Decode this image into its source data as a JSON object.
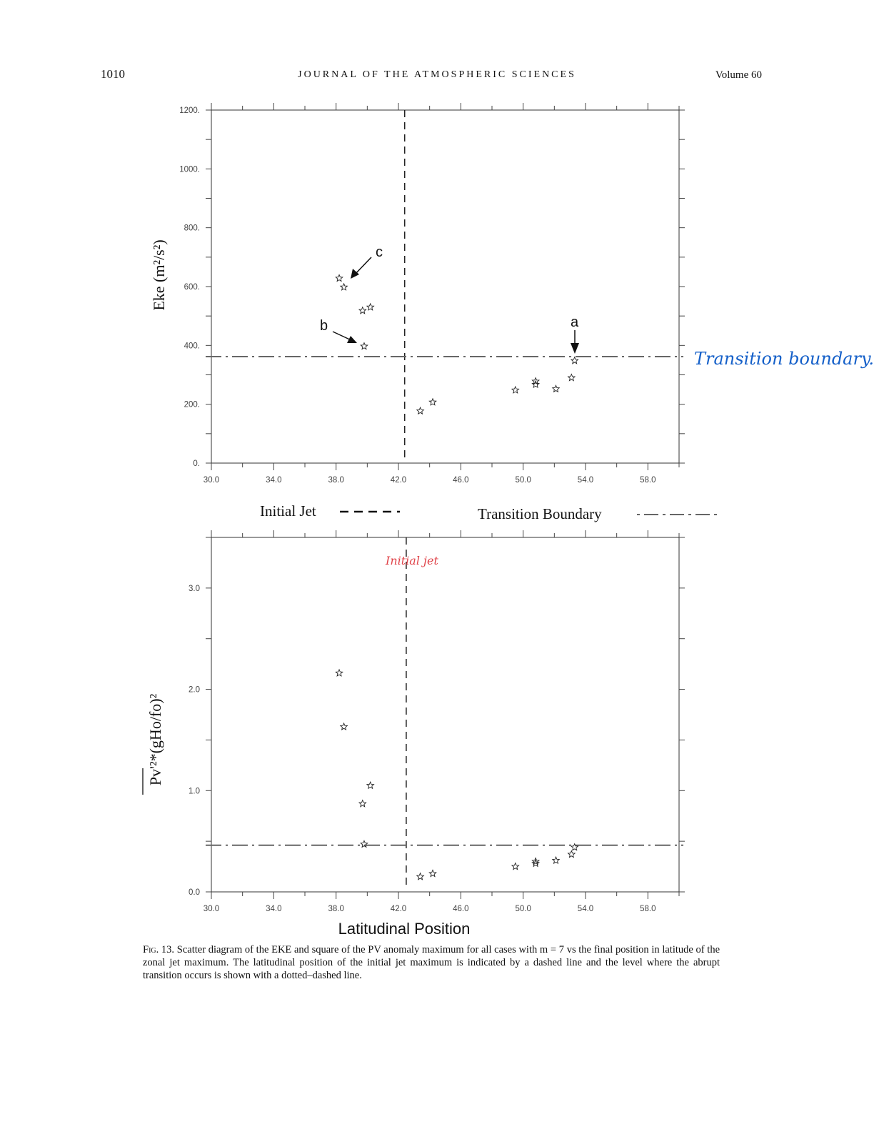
{
  "header": {
    "page_number": "1010",
    "journal": "JOURNAL OF THE ATMOSPHERIC SCIENCES",
    "volume": "Volume 60"
  },
  "legend": {
    "initial_jet": "Initial Jet",
    "transition_boundary": "Transition Boundary"
  },
  "annotations": {
    "handwritten_transition": "Transition boundary.",
    "handwritten_initial_jet": "Initial jet",
    "label_a": "a",
    "label_b": "b",
    "label_c": "c"
  },
  "caption": {
    "fig_label": "Fig. 13.",
    "text": "Scatter diagram of the EKE and square of the PV anomaly maximum for all cases with m = 7 vs the final position in latitude of the zonal jet maximum. The latitudinal position of the initial jet maximum is indicated by a dashed line and the level where the abrupt transition occurs is shown with a dotted–dashed line."
  },
  "colors": {
    "ink": "#111111",
    "handwriting_blue": "#1560c9",
    "handwriting_red": "#e0444a",
    "boundary_gray": "#666666"
  },
  "chart_data": [
    {
      "type": "scatter",
      "panel": "top",
      "ylabel": "Eke (m²/s²)",
      "xlabel": "",
      "xlim": [
        30,
        60
      ],
      "ylim": [
        0,
        1200
      ],
      "x_ticks": [
        "30.0",
        "34.0",
        "38.0",
        "42.0",
        "46.0",
        "50.0",
        "54.0",
        "58.0"
      ],
      "y_ticks": [
        "0.",
        "200.",
        "400.",
        "600.",
        "800.",
        "1000.",
        "1200."
      ],
      "initial_jet_x": 42.4,
      "transition_boundary_y": 362,
      "points": [
        {
          "x": 38.2,
          "y": 628
        },
        {
          "x": 38.5,
          "y": 598
        },
        {
          "x": 39.7,
          "y": 518
        },
        {
          "x": 40.2,
          "y": 530
        },
        {
          "x": 39.8,
          "y": 397
        },
        {
          "x": 43.4,
          "y": 177
        },
        {
          "x": 44.2,
          "y": 207
        },
        {
          "x": 49.5,
          "y": 248
        },
        {
          "x": 50.8,
          "y": 278
        },
        {
          "x": 50.8,
          "y": 267
        },
        {
          "x": 52.1,
          "y": 252
        },
        {
          "x": 53.1,
          "y": 290
        },
        {
          "x": 53.3,
          "y": 348
        }
      ],
      "marker": "star"
    },
    {
      "type": "scatter",
      "panel": "bottom",
      "ylabel": "Pv'²*(gHo/fo)²",
      "xlabel": "Latitudinal Position",
      "xlim": [
        30,
        60
      ],
      "ylim": [
        0,
        3.5
      ],
      "x_ticks": [
        "30.0",
        "34.0",
        "38.0",
        "42.0",
        "46.0",
        "50.0",
        "54.0",
        "58.0"
      ],
      "y_ticks": [
        "0.0",
        "1.0",
        "2.0",
        "3.0"
      ],
      "initial_jet_x": 42.5,
      "transition_boundary_y": 0.46,
      "points": [
        {
          "x": 38.2,
          "y": 2.16
        },
        {
          "x": 38.5,
          "y": 1.63
        },
        {
          "x": 39.7,
          "y": 0.87
        },
        {
          "x": 40.2,
          "y": 1.05
        },
        {
          "x": 39.8,
          "y": 0.47
        },
        {
          "x": 43.4,
          "y": 0.15
        },
        {
          "x": 44.2,
          "y": 0.18
        },
        {
          "x": 49.5,
          "y": 0.25
        },
        {
          "x": 50.8,
          "y": 0.3
        },
        {
          "x": 50.8,
          "y": 0.28
        },
        {
          "x": 52.1,
          "y": 0.31
        },
        {
          "x": 53.1,
          "y": 0.37
        },
        {
          "x": 53.3,
          "y": 0.44
        }
      ],
      "marker": "star"
    }
  ]
}
